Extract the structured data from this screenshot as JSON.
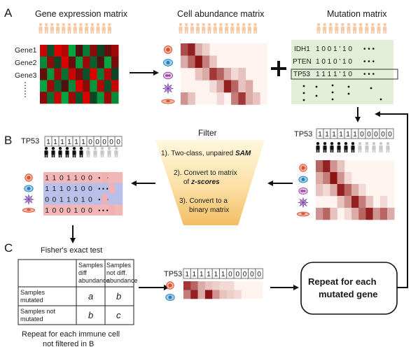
{
  "panels": {
    "a": "A",
    "b": "B",
    "c": "C"
  },
  "titles": {
    "gene_expression": "Gene expression matrix",
    "cell_abundance": "Cell abundance matrix",
    "mutation": "Mutation matrix",
    "filter": "Filter",
    "fisher": "Fisher's exact test"
  },
  "genes": {
    "expr_rows": [
      "Gene1",
      "Gene2",
      "Gene3"
    ],
    "mut_rows": [
      "IDH1",
      "PTEN",
      "TP53"
    ],
    "tp53": "TP53"
  },
  "mutation_bits": {
    "IDH1": "1 0 0 1 ' 1 0",
    "PTEN": "1 0 1 0 ' 1 0",
    "TP53": "1 1 1 1 ' 1 0"
  },
  "tp53_header_bits": [
    "1",
    "1",
    "1",
    "1",
    "1",
    "1",
    "0",
    "0",
    "0",
    "0",
    "0"
  ],
  "tp53_header_bits_c": [
    "1",
    "1",
    "1",
    "1",
    "1",
    "1",
    "0",
    "0",
    "0",
    "0",
    "0"
  ],
  "b_binary_rows": [
    "1 1 0 1 1 0 0",
    "1 1 1 0 1 0 0",
    "0 0 1 1 0 1 0",
    "1 0 0 0 1 0 0"
  ],
  "dots": "• • •",
  "filter_steps": {
    "s1": "1). Two-class, unpaired ",
    "s1_em": "SAM",
    "s2a": "2). Convert to matrix",
    "s2b": "of ",
    "s2b_em": "z-scores",
    "s3a": "3). Convert to a",
    "s3b": "binary matrix"
  },
  "fisher_table": {
    "col1": [
      "Samples",
      "diff",
      "abundance"
    ],
    "col2": [
      "Samples",
      "not diff.",
      "abundance"
    ],
    "row1": [
      "Samples",
      "mutated"
    ],
    "row2": [
      "Samples not",
      "mutated"
    ],
    "a": "a",
    "b1": "b",
    "b2": "b",
    "c": "c"
  },
  "repeat_cell": [
    "Repeat for each immune cell",
    "not filtered in B"
  ],
  "repeat_gene": [
    "Repeat for each",
    "mutated gene"
  ],
  "colors": {
    "person": "#f5cba7",
    "mutated_person": "#111111",
    "wt_person": "#c8c8c8",
    "mutation_bg": "#e2efd6",
    "filter_top": "#fff6d6",
    "filter_bottom": "#f4c06a",
    "pink": "#f3b3b3",
    "blue": "#b3b8e6",
    "dark_red": "#8a0e0e",
    "red": "#d42a2a"
  }
}
